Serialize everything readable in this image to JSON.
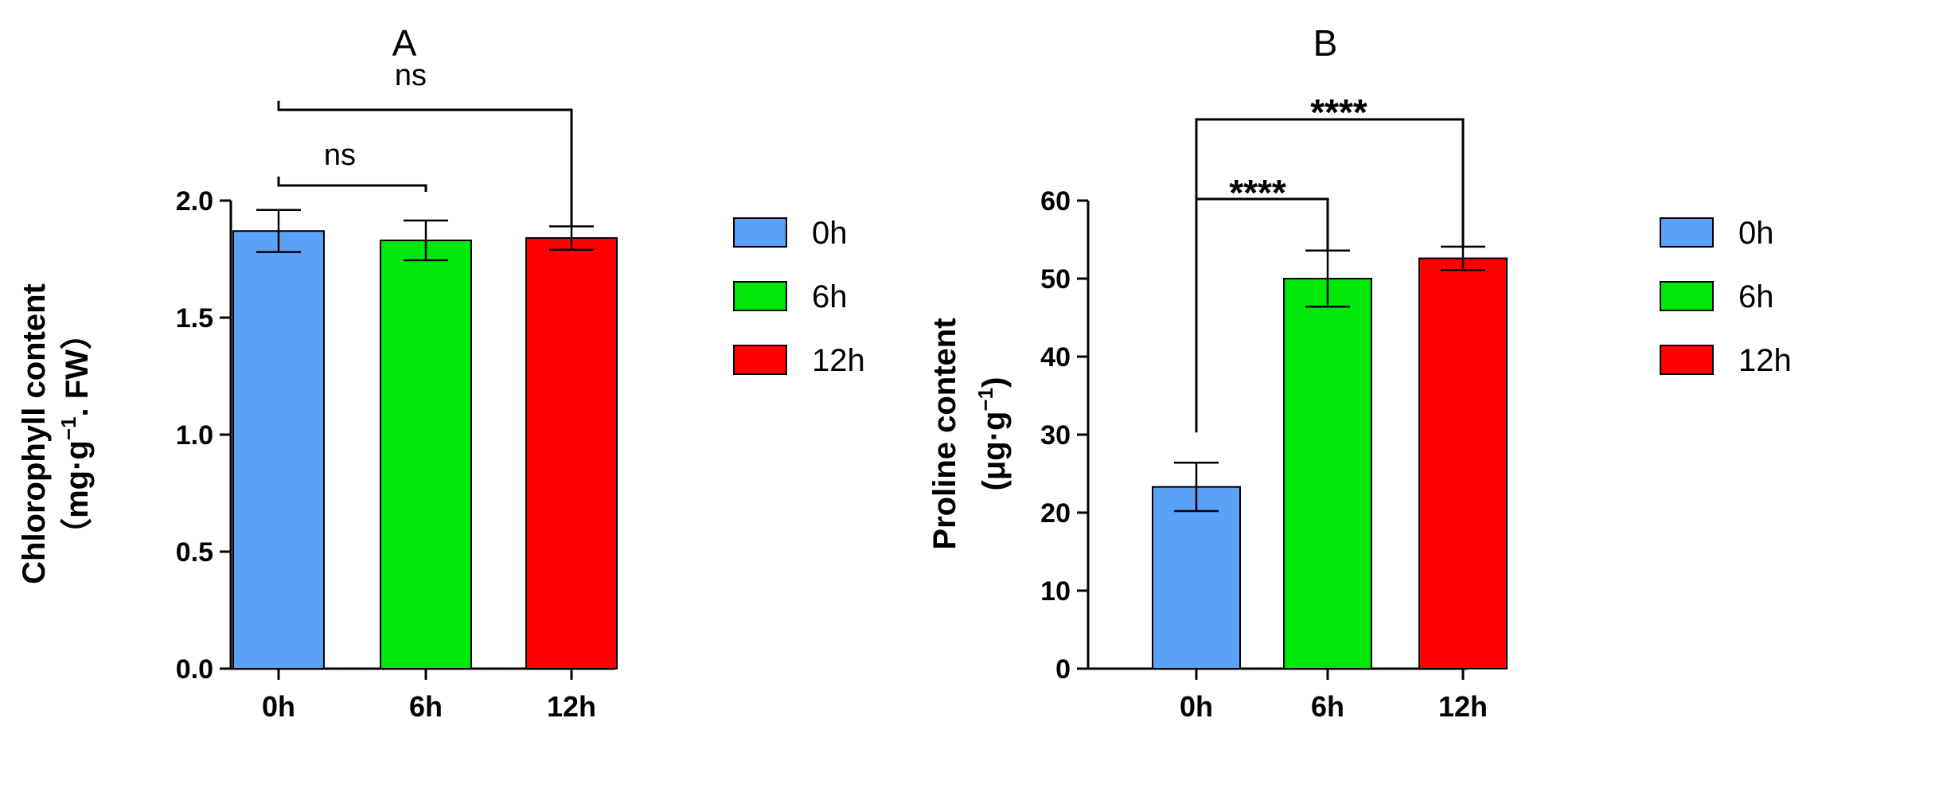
{
  "chart_data": [
    {
      "type": "bar",
      "title": "A",
      "xlabel": "",
      "ylabel_line1": "Chlorophyll content",
      "ylabel_line2_pre": "（mg·g",
      "ylabel_line2_sup": "−1",
      "ylabel_line2_post": ". FW）",
      "categories": [
        "0h",
        "6h",
        "12h"
      ],
      "values": [
        1.87,
        1.83,
        1.84
      ],
      "errors": [
        0.09,
        0.085,
        0.05
      ],
      "colors": [
        "#5aa2f7",
        "#00e80a",
        "#ff0000"
      ],
      "ylim": [
        0,
        2.0
      ],
      "yticks": [
        "0.0",
        "0.5",
        "1.0",
        "1.5",
        "2.0"
      ],
      "legend": [
        "0h",
        "6h",
        "12h"
      ],
      "significance": [
        {
          "from": "0h",
          "to": "6h",
          "label": "ns"
        },
        {
          "from": "0h",
          "to": "12h",
          "label": "ns"
        }
      ]
    },
    {
      "type": "bar",
      "title": "B",
      "xlabel": "",
      "ylabel_line1": "Proline content",
      "ylabel_line2_pre": "(μg·g",
      "ylabel_line2_sup": "−1",
      "ylabel_line2_post": ")",
      "categories": [
        "0h",
        "6h",
        "12h"
      ],
      "values": [
        23.3,
        50.0,
        52.6
      ],
      "errors": [
        3.1,
        3.6,
        1.5
      ],
      "colors": [
        "#5aa2f7",
        "#00e80a",
        "#ff0000"
      ],
      "ylim": [
        0,
        60
      ],
      "yticks": [
        "0",
        "10",
        "20",
        "30",
        "40",
        "50",
        "60"
      ],
      "legend": [
        "0h",
        "6h",
        "12h"
      ],
      "significance": [
        {
          "from": "0h",
          "to": "6h",
          "label": "****"
        },
        {
          "from": "0h",
          "to": "12h",
          "label": "****"
        }
      ]
    }
  ]
}
